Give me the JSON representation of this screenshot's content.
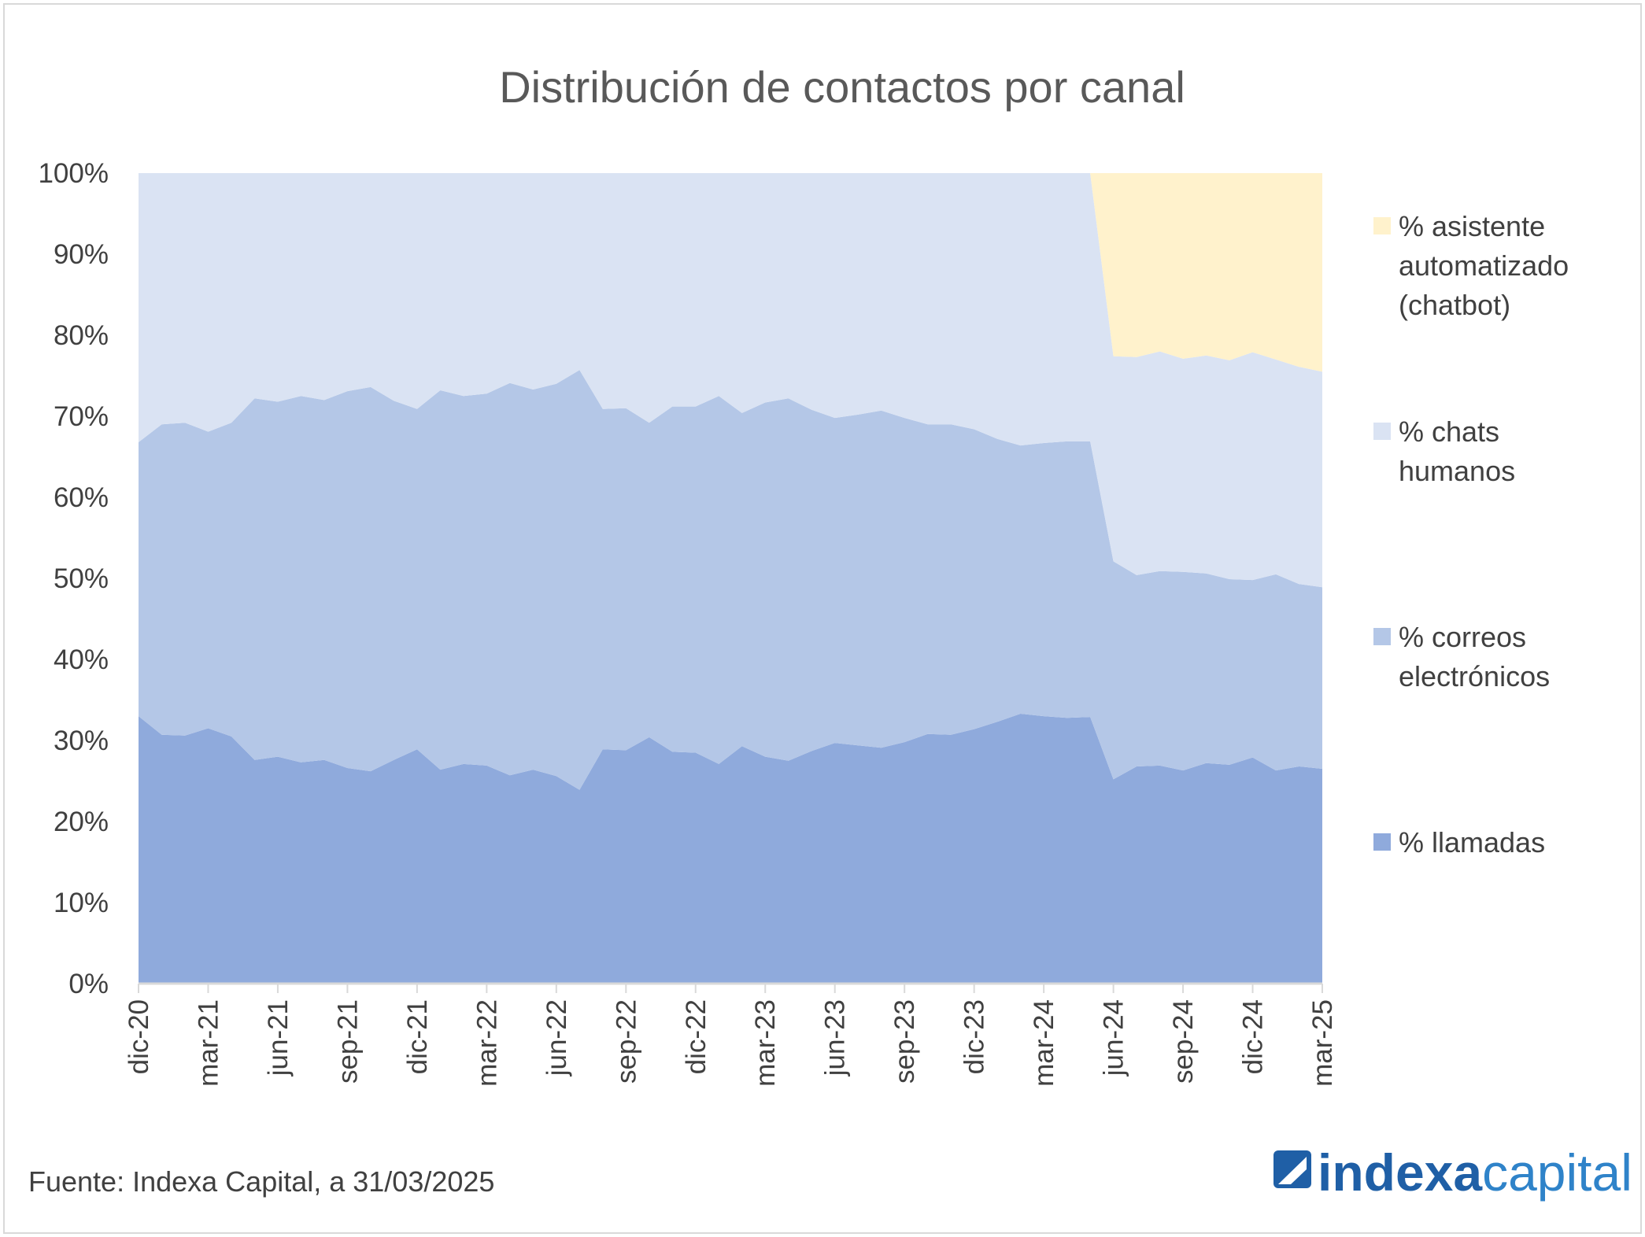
{
  "chart_data": {
    "type": "area",
    "stacked": true,
    "title": "Distribución de contactos por canal",
    "xlabel": "",
    "ylabel": "",
    "ylim": [
      0,
      100
    ],
    "y_ticks": [
      "0%",
      "10%",
      "20%",
      "30%",
      "40%",
      "50%",
      "60%",
      "70%",
      "80%",
      "90%",
      "100%"
    ],
    "x_tick_labels": [
      "dic-20",
      "mar-21",
      "jun-21",
      "sep-21",
      "dic-21",
      "mar-22",
      "jun-22",
      "sep-22",
      "dic-22",
      "mar-23",
      "jun-23",
      "sep-23",
      "dic-23",
      "mar-24",
      "jun-24",
      "sep-24",
      "dic-24",
      "mar-25"
    ],
    "x": [
      "dic-20",
      "ene-21",
      "feb-21",
      "mar-21",
      "abr-21",
      "may-21",
      "jun-21",
      "jul-21",
      "ago-21",
      "sep-21",
      "oct-21",
      "nov-21",
      "dic-21",
      "ene-22",
      "feb-22",
      "mar-22",
      "abr-22",
      "may-22",
      "jun-22",
      "jul-22",
      "ago-22",
      "sep-22",
      "oct-22",
      "nov-22",
      "dic-22",
      "ene-23",
      "feb-23",
      "mar-23",
      "abr-23",
      "may-23",
      "jun-23",
      "jul-23",
      "ago-23",
      "sep-23",
      "oct-23",
      "nov-23",
      "dic-23",
      "ene-24",
      "feb-24",
      "mar-24",
      "abr-24",
      "may-24",
      "jun-24",
      "jul-24",
      "ago-24",
      "sep-24",
      "oct-24",
      "nov-24",
      "dic-24",
      "ene-25",
      "feb-25",
      "mar-25"
    ],
    "legend_position": "right",
    "series": [
      {
        "name": "% llamadas",
        "color": "#8faadc",
        "values": [
          33.0,
          30.7,
          30.6,
          31.5,
          30.5,
          27.6,
          28.0,
          27.3,
          27.6,
          26.6,
          26.2,
          27.6,
          28.9,
          26.4,
          27.1,
          26.9,
          25.7,
          26.4,
          25.6,
          23.9,
          28.9,
          28.8,
          30.4,
          28.6,
          28.5,
          27.1,
          29.3,
          28.0,
          27.5,
          28.7,
          29.7,
          29.4,
          29.1,
          29.8,
          30.8,
          30.7,
          31.4,
          32.3,
          33.3,
          33.0,
          32.8,
          32.9,
          25.2,
          26.8,
          26.9,
          26.3,
          27.2,
          27.0,
          27.9,
          26.3,
          26.8,
          26.5
        ]
      },
      {
        "name": "% correos electrónicos",
        "color": "#b4c7e7",
        "values": [
          33.8,
          38.3,
          38.6,
          36.6,
          38.7,
          44.6,
          43.8,
          45.2,
          44.4,
          46.5,
          47.4,
          44.3,
          42.0,
          46.8,
          45.4,
          45.9,
          48.4,
          46.9,
          48.4,
          51.8,
          42.0,
          42.2,
          38.8,
          42.6,
          42.7,
          45.4,
          41.1,
          43.7,
          44.7,
          42.1,
          40.1,
          40.8,
          41.6,
          40.0,
          38.2,
          38.3,
          37.0,
          34.9,
          33.1,
          33.7,
          34.1,
          34.0,
          26.9,
          23.6,
          24.0,
          24.5,
          23.4,
          22.9,
          21.9,
          24.2,
          22.5,
          22.4
        ]
      },
      {
        "name": "% chats humanos",
        "color": "#dae3f3",
        "values": [
          33.2,
          31.0,
          30.8,
          31.9,
          30.8,
          27.8,
          28.2,
          27.5,
          28.0,
          26.9,
          26.4,
          28.1,
          29.1,
          26.8,
          27.5,
          27.2,
          25.9,
          26.7,
          26.0,
          24.3,
          29.1,
          29.0,
          30.8,
          28.8,
          28.8,
          27.5,
          29.6,
          28.3,
          27.8,
          29.2,
          30.2,
          29.8,
          29.3,
          30.2,
          31.0,
          31.0,
          31.6,
          32.8,
          33.6,
          33.3,
          33.1,
          33.1,
          25.3,
          26.9,
          27.1,
          26.3,
          26.9,
          27.0,
          28.1,
          26.5,
          26.8,
          26.6
        ]
      },
      {
        "name": "% asistente automatizado (chatbot)",
        "color": "#fff2cc",
        "values": [
          0,
          0,
          0,
          0,
          0,
          0,
          0,
          0,
          0,
          0,
          0,
          0,
          0,
          0,
          0,
          0,
          0,
          0,
          0,
          0,
          0,
          0,
          0,
          0,
          0,
          0,
          0,
          0,
          0,
          0,
          0,
          0,
          0,
          0,
          0,
          0,
          0,
          0,
          0,
          0,
          0,
          0,
          22.6,
          22.7,
          22.0,
          22.9,
          22.5,
          23.1,
          22.1,
          23.0,
          23.9,
          24.5
        ]
      }
    ],
    "legend": [
      {
        "series_index": 3,
        "lines": [
          "% asistente",
          "automatizado",
          "(chatbot)"
        ]
      },
      {
        "series_index": 2,
        "lines": [
          "% chats",
          "humanos"
        ]
      },
      {
        "series_index": 1,
        "lines": [
          "% correos",
          "electrónicos"
        ]
      },
      {
        "series_index": 0,
        "lines": [
          "% llamadas"
        ]
      }
    ]
  },
  "footer": {
    "source": "Fuente:  Indexa Capital, a 31/03/2025",
    "brand_part1": "indexa",
    "brand_part2": "capital"
  }
}
